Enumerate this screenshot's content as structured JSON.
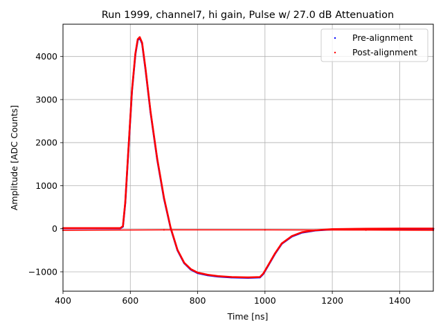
{
  "chart_data": {
    "type": "scatter",
    "title": "Run 1999, channel7, hi gain, Pulse w/ 27.0 dB Attenuation",
    "xlabel": "Time [ns]",
    "ylabel": "Amplitude [ADC Counts]",
    "xlim": [
      400,
      1500
    ],
    "ylim": [
      -1450,
      4750
    ],
    "xticks": [
      400,
      600,
      800,
      1000,
      1200,
      1400
    ],
    "xtick_labels": [
      "400",
      "600",
      "800",
      "1000",
      "1200",
      "1400"
    ],
    "yticks": [
      -1000,
      0,
      1000,
      2000,
      3000,
      4000
    ],
    "ytick_labels": [
      "−1000",
      "0",
      "1000",
      "2000",
      "3000",
      "4000"
    ],
    "grid": true,
    "legend_position": "top-right",
    "series": [
      {
        "name": "Pre-alignment",
        "color": "#0000ff",
        "marker": "point",
        "x": [
          400,
          500,
          570,
          578,
          585,
          595,
          605,
          615,
          622,
          628,
          635,
          645,
          660,
          680,
          700,
          720,
          740,
          760,
          780,
          800,
          830,
          860,
          900,
          950,
          985,
          995,
          1010,
          1030,
          1050,
          1080,
          1110,
          1150,
          1200,
          1300,
          1400,
          1500
        ],
        "y": [
          10,
          10,
          10,
          50,
          600,
          1900,
          3200,
          4050,
          4380,
          4430,
          4300,
          3700,
          2700,
          1600,
          700,
          10,
          -500,
          -800,
          -950,
          -1030,
          -1080,
          -1110,
          -1130,
          -1140,
          -1130,
          -1050,
          -850,
          -580,
          -350,
          -180,
          -90,
          -40,
          -15,
          -5,
          0,
          0
        ]
      },
      {
        "name": "Post-alignment",
        "color": "#ff0000",
        "marker": "point",
        "x": [
          400,
          500,
          570,
          578,
          585,
          595,
          605,
          615,
          622,
          628,
          635,
          645,
          660,
          680,
          700,
          720,
          740,
          760,
          780,
          800,
          830,
          860,
          900,
          950,
          985,
          995,
          1010,
          1030,
          1050,
          1080,
          1110,
          1150,
          1200,
          1300,
          1400,
          1500
        ],
        "y": [
          15,
          15,
          15,
          60,
          620,
          1920,
          3220,
          4070,
          4400,
          4450,
          4320,
          3720,
          2720,
          1620,
          720,
          20,
          -490,
          -790,
          -940,
          -1020,
          -1070,
          -1100,
          -1120,
          -1130,
          -1120,
          -1040,
          -840,
          -570,
          -340,
          -170,
          -80,
          -35,
          -10,
          0,
          5,
          5
        ]
      },
      {
        "name": "",
        "color": "#ff0000",
        "marker": "point",
        "x": [
          400,
          700,
          1000,
          1300,
          1500
        ],
        "y": [
          -35,
          -25,
          -25,
          -30,
          -35
        ]
      }
    ]
  }
}
